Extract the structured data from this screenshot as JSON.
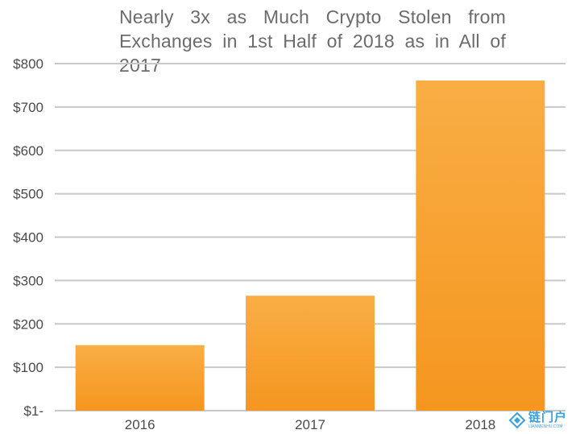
{
  "chart_data": {
    "type": "bar",
    "title_lines": [
      "Nearly 3x as Much Crypto Stolen from",
      "Exchanges in 1st Half of 2018 as in All of 2017"
    ],
    "categories": [
      "2016",
      "2017",
      "2018"
    ],
    "values": [
      151,
      265,
      761
    ],
    "y_tick_labels": [
      "$1-",
      "$100",
      "$200",
      "$300",
      "$400",
      "$500",
      "$600",
      "$700",
      "$800"
    ],
    "y_tick_values": [
      0,
      100,
      200,
      300,
      400,
      500,
      600,
      700,
      800
    ],
    "ylim": [
      0,
      800
    ],
    "grid": true,
    "legend": "none",
    "colors": {
      "bar_top": "#f9ae45",
      "bar_bottom": "#f5961f",
      "grid": "#c8c8c8",
      "title": "#6b6b6b",
      "labels": "#4a4a4a"
    }
  },
  "watermark": {
    "text": "链门户",
    "subtext": "LIANMENHU.COM",
    "icon": "diamond-logo-icon",
    "color": "#3aa0de"
  }
}
